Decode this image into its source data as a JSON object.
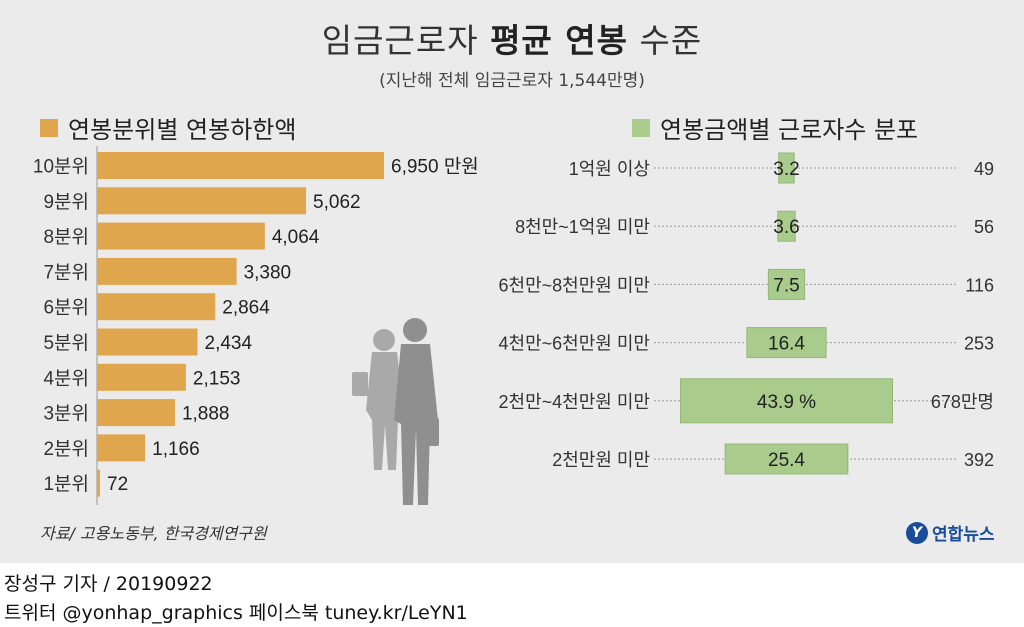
{
  "header": {
    "title_normal": "임금근로자 ",
    "title_bold": "평균 연봉",
    "title_tail": " 수준",
    "subtitle": "(지난해 전체 임금근로자 1,544만명)"
  },
  "colors": {
    "left_bar": "#e0a64e",
    "right_bar": "#a9cc8c",
    "right_bar_stroke": "#93b877",
    "panel_bg": "#ebebeb"
  },
  "chart_data": [
    {
      "type": "bar",
      "orientation": "horizontal",
      "title": "연봉분위별 연봉하한액",
      "categories": [
        "10분위",
        "9분위",
        "8분위",
        "7분위",
        "6분위",
        "5분위",
        "4분위",
        "3분위",
        "2분위",
        "1분위"
      ],
      "values": [
        6950,
        5062,
        4064,
        3380,
        2864,
        2434,
        2153,
        1888,
        1166,
        72
      ],
      "value_labels": [
        "6,950 만원",
        "5,062",
        "4,064",
        "3,380",
        "2,864",
        "2,434",
        "2,153",
        "1,888",
        "1,166",
        "72"
      ],
      "xlim": [
        0,
        7500
      ]
    },
    {
      "type": "bar",
      "orientation": "horizontal-centered",
      "title": "연봉금액별 근로자수 분포",
      "categories": [
        "1억원 이상",
        "8천만~1억원 미만",
        "6천만~8천만원 미만",
        "4천만~6천만원 미만",
        "2천만~4천만원 미만",
        "2천만원 미만"
      ],
      "values": [
        3.2,
        3.6,
        7.5,
        16.4,
        43.9,
        25.4
      ],
      "value_labels": [
        "3.2",
        "3.6",
        "7.5",
        "16.4",
        "43.9 %",
        "25.4"
      ],
      "counts": [
        49,
        56,
        116,
        253,
        678,
        392
      ],
      "count_labels": [
        "49",
        "56",
        "116",
        "253",
        "678만명",
        "392"
      ]
    }
  ],
  "source": "자료/ 고용노동부, 한국경제연구원",
  "logo": {
    "mark": "Y",
    "name": "연합뉴스"
  },
  "footer": {
    "line1": "장성구 기자  / 20190922",
    "line2": "트위터 @yonhap_graphics  페이스북 tuney.kr/LeYN1"
  }
}
